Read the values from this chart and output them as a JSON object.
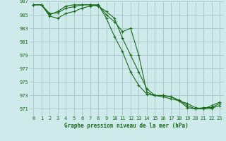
{
  "xlabel": "Graphe pression niveau de la mer (hPa)",
  "background_color": "#ceeaea",
  "grid_color": "#aacccc",
  "line_color": "#1a6b1a",
  "ylim": [
    970.0,
    987.0
  ],
  "xlim": [
    -0.5,
    23.5
  ],
  "yticks": [
    971,
    973,
    975,
    977,
    979,
    981,
    983,
    985,
    987
  ],
  "xticks": [
    0,
    1,
    2,
    3,
    4,
    5,
    6,
    7,
    8,
    9,
    10,
    11,
    12,
    13,
    14,
    15,
    16,
    17,
    18,
    19,
    20,
    21,
    22,
    23
  ],
  "series": [
    [
      986.5,
      986.5,
      985.0,
      985.5,
      986.3,
      986.5,
      986.5,
      986.5,
      986.3,
      985.5,
      984.5,
      981.5,
      979.0,
      976.5,
      974.0,
      973.0,
      973.0,
      972.8,
      972.2,
      971.2,
      971.0,
      971.0,
      971.1,
      971.5
    ],
    [
      986.5,
      986.5,
      984.8,
      984.5,
      985.2,
      985.5,
      986.0,
      986.3,
      986.5,
      985.0,
      984.0,
      982.5,
      983.0,
      979.0,
      973.5,
      973.0,
      972.8,
      972.5,
      972.2,
      971.8,
      971.2,
      971.0,
      971.5,
      972.0
    ],
    [
      986.5,
      986.5,
      985.2,
      985.3,
      986.0,
      986.2,
      986.5,
      986.5,
      986.5,
      984.5,
      981.8,
      979.5,
      976.5,
      974.5,
      973.2,
      973.0,
      973.0,
      972.8,
      972.3,
      971.5,
      971.0,
      971.2,
      971.2,
      971.8
    ]
  ]
}
